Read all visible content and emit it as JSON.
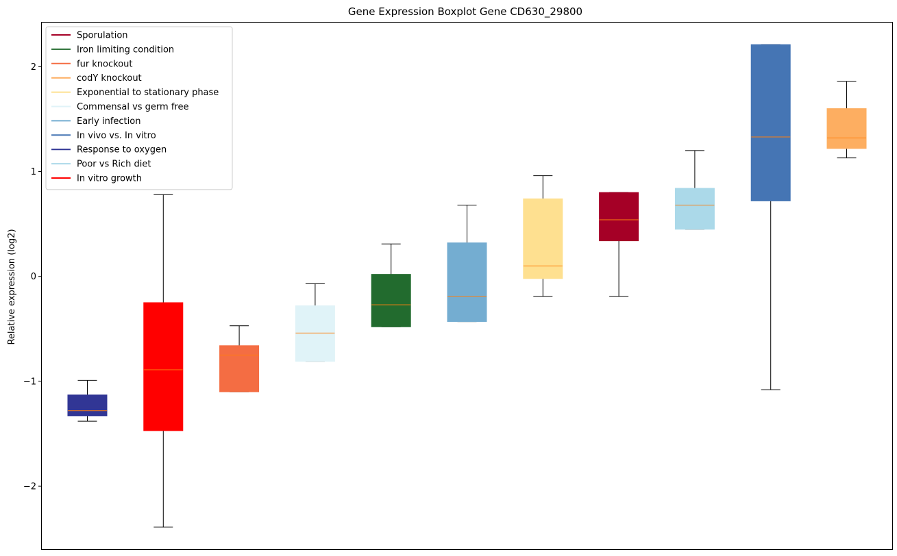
{
  "chart_data": {
    "type": "boxplot",
    "title": "Gene Expression Boxplot Gene CD630_29800",
    "xlabel": "",
    "ylabel": "Relative expression (log2)",
    "ylim": [
      -2.6,
      2.42
    ],
    "yticks": [
      -2,
      -1,
      0,
      1,
      2
    ],
    "ytick_labels": [
      "−2",
      "−1",
      "0",
      "1",
      "2"
    ],
    "grid": false,
    "legend_position": "top-left",
    "median_color": "#ff7f0e",
    "legend": [
      {
        "label": "Sporulation",
        "color": "#a50026"
      },
      {
        "label": "Iron limiting condition",
        "color": "#226b2e"
      },
      {
        "label": "fur knockout",
        "color": "#f46d43"
      },
      {
        "label": "codY knockout",
        "color": "#fdae61"
      },
      {
        "label": "Exponential to stationary phase",
        "color": "#fee090"
      },
      {
        "label": "Commensal vs germ free",
        "color": "#e0f3f8"
      },
      {
        "label": "Early infection",
        "color": "#74add1"
      },
      {
        "label": "In vivo vs. In vitro",
        "color": "#4575b4"
      },
      {
        "label": "Response to oxygen",
        "color": "#313695"
      },
      {
        "label": "Poor vs Rich diet",
        "color": "#abd9e9"
      },
      {
        "label": "In vitro growth",
        "color": "#ff0000"
      }
    ],
    "boxes": [
      {
        "condition": "Response to oxygen",
        "color": "#313695",
        "whislo": -1.38,
        "q1": -1.33,
        "median": -1.28,
        "q3": -1.13,
        "whishi": -0.99
      },
      {
        "condition": "In vitro growth",
        "color": "#ff0000",
        "whislo": -2.39,
        "q1": -1.47,
        "median": -0.89,
        "q3": -0.25,
        "whishi": 0.78
      },
      {
        "condition": "fur knockout",
        "color": "#f46d43",
        "whislo": -1.1,
        "q1": -1.1,
        "median": -0.75,
        "q3": -0.66,
        "whishi": -0.47
      },
      {
        "condition": "Commensal vs germ free",
        "color": "#e0f3f8",
        "whislo": -0.81,
        "q1": -0.81,
        "median": -0.54,
        "q3": -0.28,
        "whishi": -0.07
      },
      {
        "condition": "Iron limiting condition",
        "color": "#226b2e",
        "whislo": -0.48,
        "q1": -0.48,
        "median": -0.27,
        "q3": 0.02,
        "whishi": 0.31
      },
      {
        "condition": "Early infection",
        "color": "#74add1",
        "whislo": -0.43,
        "q1": -0.43,
        "median": -0.19,
        "q3": 0.32,
        "whishi": 0.68
      },
      {
        "condition": "Exponential to stationary phase",
        "color": "#fee090",
        "whislo": -0.19,
        "q1": -0.02,
        "median": 0.1,
        "q3": 0.74,
        "whishi": 0.96
      },
      {
        "condition": "Sporulation",
        "color": "#a50026",
        "whislo": -0.19,
        "q1": 0.34,
        "median": 0.54,
        "q3": 0.8,
        "whishi": 0.8
      },
      {
        "condition": "Poor vs Rich diet",
        "color": "#abd9e9",
        "whislo": 0.45,
        "q1": 0.45,
        "median": 0.68,
        "q3": 0.84,
        "whishi": 1.2
      },
      {
        "condition": "In vivo vs. In vitro",
        "color": "#4575b4",
        "whislo": -1.08,
        "q1": 0.72,
        "median": 1.33,
        "q3": 2.21,
        "whishi": 2.21
      },
      {
        "condition": "codY knockout",
        "color": "#fdae61",
        "whislo": 1.13,
        "q1": 1.22,
        "median": 1.32,
        "q3": 1.6,
        "whishi": 1.86
      }
    ]
  }
}
